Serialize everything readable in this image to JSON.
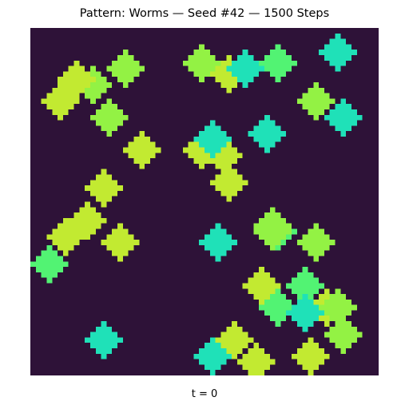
{
  "title": "Pattern: Worms — Seed #42 — 1500 Steps",
  "caption": "t = 0",
  "colors": {
    "background": "#2e1238",
    "lime": "#c2ea31",
    "green": "#93f244",
    "mint": "#52f373",
    "teal": "#1fe1b8"
  },
  "blobs": [
    {
      "color": "green",
      "col": 17,
      "row": 7
    },
    {
      "color": "green",
      "col": 11,
      "row": 10
    },
    {
      "color": "green",
      "col": 14,
      "row": 16
    },
    {
      "color": "green",
      "col": 52,
      "row": 13
    },
    {
      "color": "green",
      "col": 31,
      "row": 6
    },
    {
      "color": "mint",
      "col": 45,
      "row": 6
    },
    {
      "color": "mint",
      "col": 45,
      "row": 37
    },
    {
      "color": "mint",
      "col": 45,
      "row": 51
    },
    {
      "color": "mint",
      "col": 3,
      "row": 43
    },
    {
      "color": "mint",
      "col": 50,
      "row": 47
    },
    {
      "color": "lime",
      "col": 8,
      "row": 9
    },
    {
      "color": "lime",
      "col": 5,
      "row": 13
    },
    {
      "color": "lime",
      "col": 20,
      "row": 22
    },
    {
      "color": "lime",
      "col": 31,
      "row": 22
    },
    {
      "color": "lime",
      "col": 36,
      "row": 8
    },
    {
      "color": "lime",
      "col": 36,
      "row": 28
    },
    {
      "color": "lime",
      "col": 13,
      "row": 29
    },
    {
      "color": "lime",
      "col": 16,
      "row": 39
    },
    {
      "color": "lime",
      "col": 6,
      "row": 38
    },
    {
      "color": "lime",
      "col": 10,
      "row": 35
    },
    {
      "color": "lime",
      "col": 42,
      "row": 47
    },
    {
      "color": "lime",
      "col": 37,
      "row": 57
    },
    {
      "color": "lime",
      "col": 54,
      "row": 51
    },
    {
      "color": "lime",
      "col": 41,
      "row": 61
    },
    {
      "color": "green",
      "col": 44,
      "row": 36
    },
    {
      "color": "green",
      "col": 56,
      "row": 51
    },
    {
      "color": "green",
      "col": 52,
      "row": 39
    },
    {
      "color": "green",
      "col": 57,
      "row": 56
    },
    {
      "color": "lime",
      "col": 35,
      "row": 23
    },
    {
      "color": "lime",
      "col": 51,
      "row": 60
    },
    {
      "color": "teal",
      "col": 39,
      "row": 7
    },
    {
      "color": "teal",
      "col": 56,
      "row": 4
    },
    {
      "color": "teal",
      "col": 57,
      "row": 16
    },
    {
      "color": "teal",
      "col": 33,
      "row": 20
    },
    {
      "color": "teal",
      "col": 43,
      "row": 19
    },
    {
      "color": "teal",
      "col": 34,
      "row": 39
    },
    {
      "color": "teal",
      "col": 50,
      "row": 52
    },
    {
      "color": "teal",
      "col": 13,
      "row": 57
    },
    {
      "color": "teal",
      "col": 33,
      "row": 60
    },
    {
      "color": "green",
      "col": 44,
      "row": 37
    }
  ]
}
